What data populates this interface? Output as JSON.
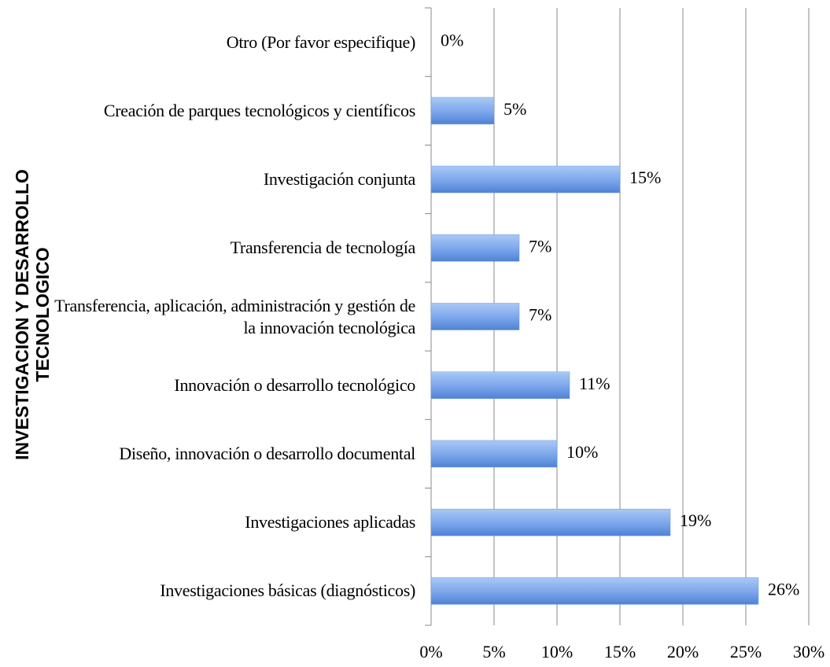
{
  "chart_data": {
    "type": "barh",
    "ylabel": [
      "INVESTIGACION Y DESARROLLO",
      "TECNOLOGICO"
    ],
    "categories": [
      "Otro (Por favor especifique)",
      "Creación de parques tecnológicos y científicos",
      "Investigación conjunta",
      "Transferencia de tecnología",
      "Transferencia, aplicación, administración y gestión de la innovación tecnológica",
      "Innovación o desarrollo tecnológico",
      "Diseño, innovación o desarrollo documental",
      "Investigaciones aplicadas",
      "Investigaciones básicas (diagnósticos)"
    ],
    "values": [
      0,
      5,
      15,
      7,
      7,
      11,
      10,
      19,
      26
    ],
    "value_labels": [
      "0%",
      "5%",
      "15%",
      "7%",
      "7%",
      "11%",
      "10%",
      "19%",
      "26%"
    ],
    "color": "#6b9be6",
    "xlim": [
      0,
      30
    ],
    "xticks": [
      {
        "value": 0,
        "label": "0%"
      },
      {
        "value": 5,
        "label": "5%"
      },
      {
        "value": 10,
        "label": "10%"
      },
      {
        "value": 15,
        "label": "15%"
      },
      {
        "value": 20,
        "label": "20%"
      },
      {
        "value": 25,
        "label": "25%"
      },
      {
        "value": 30,
        "label": "30%"
      }
    ],
    "grid": true
  }
}
